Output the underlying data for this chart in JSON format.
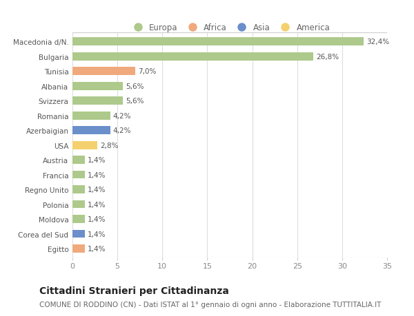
{
  "categories": [
    "Macedonia d/N.",
    "Bulgaria",
    "Tunisia",
    "Albania",
    "Svizzera",
    "Romania",
    "Azerbaigian",
    "USA",
    "Austria",
    "Francia",
    "Regno Unito",
    "Polonia",
    "Moldova",
    "Corea del Sud",
    "Egitto"
  ],
  "values": [
    32.4,
    26.8,
    7.0,
    5.6,
    5.6,
    4.2,
    4.2,
    2.8,
    1.4,
    1.4,
    1.4,
    1.4,
    1.4,
    1.4,
    1.4
  ],
  "labels": [
    "32,4%",
    "26,8%",
    "7,0%",
    "5,6%",
    "5,6%",
    "4,2%",
    "4,2%",
    "2,8%",
    "1,4%",
    "1,4%",
    "1,4%",
    "1,4%",
    "1,4%",
    "1,4%",
    "1,4%"
  ],
  "continents": [
    "Europa",
    "Europa",
    "Africa",
    "Europa",
    "Europa",
    "Europa",
    "Asia",
    "America",
    "Europa",
    "Europa",
    "Europa",
    "Europa",
    "Europa",
    "Asia",
    "Africa"
  ],
  "continent_colors": {
    "Europa": "#adc98b",
    "Africa": "#f0a97c",
    "Asia": "#6b8fca",
    "America": "#f5d06e"
  },
  "legend_order": [
    "Europa",
    "Africa",
    "Asia",
    "America"
  ],
  "title": "Cittadini Stranieri per Cittadinanza",
  "subtitle": "COMUNE DI RODDINO (CN) - Dati ISTAT al 1° gennaio di ogni anno - Elaborazione TUTTITALIA.IT",
  "xlim": [
    0,
    35
  ],
  "xticks": [
    0,
    5,
    10,
    15,
    20,
    25,
    30,
    35
  ],
  "background_color": "#ffffff",
  "plot_bg_color": "#ffffff",
  "bar_height": 0.55,
  "title_fontsize": 10,
  "subtitle_fontsize": 7.5,
  "label_fontsize": 7.5,
  "ytick_fontsize": 7.5,
  "xtick_fontsize": 8,
  "legend_fontsize": 8.5
}
